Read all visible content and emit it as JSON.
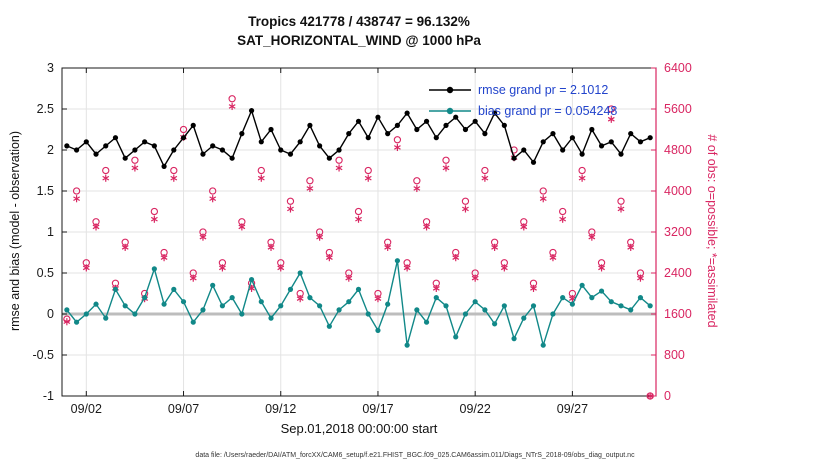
{
  "footnote": "data file: /Users/raeder/DAI/ATM_forcXX/CAM6_setup/f.e21.FHIST_BGC.f09_025.CAM6assim.011/Diags_NTrS_2018-09/obs_diag_output.nc",
  "colors": {
    "rmse": "#000000",
    "bias": "#118888",
    "obs": "#d92662",
    "legend_text": "#2244cc",
    "grid": "#e3e3e3",
    "zero_line": "#bdbdbd",
    "axis": "#1a1a1a"
  },
  "chart_data": {
    "type": "line",
    "title_line1": "Tropics 421778 / 438747 = 96.132%",
    "title_line2": "SAT_HORIZONTAL_WIND @ 1000 hPa",
    "xlabel": "Sep.01,2018 00:00:00 start",
    "ylabel_left": "rmse and bias (model - observation)",
    "ylabel_right": "# of obs: o=possible; *=assimilated",
    "legend": [
      "rmse grand pr = 2.1012",
      "bias grand pr = 0.054248"
    ],
    "rmse_grand_pr": 2.1012,
    "bias_grand_pr": 0.054248,
    "grid": true,
    "xlim": [
      0.75,
      31.3
    ],
    "ylim_left": [
      -1,
      3
    ],
    "ylim_right": [
      0,
      6400
    ],
    "y_ticks_left": [
      -1,
      -0.5,
      0,
      0.5,
      1,
      1.5,
      2,
      2.5,
      3
    ],
    "y_ticks_right": [
      0,
      800,
      1600,
      2400,
      3200,
      4000,
      4800,
      5600,
      6400
    ],
    "x_ticks": [
      {
        "day": 2,
        "label": "09/02"
      },
      {
        "day": 7,
        "label": "09/07"
      },
      {
        "day": 12,
        "label": "09/12"
      },
      {
        "day": 17,
        "label": "09/17"
      },
      {
        "day": 22,
        "label": "09/22"
      },
      {
        "day": 27,
        "label": "09/27"
      }
    ],
    "x": [
      1,
      1.5,
      2,
      2.5,
      3,
      3.5,
      4,
      4.5,
      5,
      5.5,
      6,
      6.5,
      7,
      7.5,
      8,
      8.5,
      9,
      9.5,
      10,
      10.5,
      11,
      11.5,
      12,
      12.5,
      13,
      13.5,
      14,
      14.5,
      15,
      15.5,
      16,
      16.5,
      17,
      17.5,
      18,
      18.5,
      19,
      19.5,
      20,
      20.5,
      21,
      21.5,
      22,
      22.5,
      23,
      23.5,
      24,
      24.5,
      25,
      25.5,
      26,
      26.5,
      27,
      27.5,
      28,
      28.5,
      29,
      29.5,
      30,
      30.5,
      31
    ],
    "series": [
      {
        "name": "rmse",
        "axis": "left",
        "marker": "dot",
        "values": [
          2.05,
          2.0,
          2.1,
          1.95,
          2.05,
          2.15,
          1.9,
          2.0,
          2.1,
          2.05,
          1.8,
          2.0,
          2.15,
          2.3,
          1.95,
          2.05,
          2.0,
          1.9,
          2.2,
          2.48,
          2.1,
          2.25,
          2.0,
          1.95,
          2.1,
          2.3,
          2.05,
          1.9,
          2.0,
          2.2,
          2.35,
          2.15,
          2.4,
          2.2,
          2.3,
          2.45,
          2.25,
          2.35,
          2.15,
          2.3,
          2.4,
          2.25,
          2.35,
          2.2,
          2.45,
          2.3,
          1.9,
          2.0,
          1.85,
          2.1,
          2.2,
          2.0,
          2.15,
          1.95,
          2.25,
          2.05,
          2.1,
          1.95,
          2.2,
          2.1,
          2.15
        ]
      },
      {
        "name": "bias",
        "axis": "left",
        "marker": "dot",
        "values": [
          0.05,
          -0.1,
          0.0,
          0.12,
          -0.05,
          0.3,
          0.1,
          0.0,
          0.2,
          0.55,
          0.12,
          0.3,
          0.15,
          -0.1,
          0.05,
          0.35,
          0.1,
          0.2,
          0.0,
          0.42,
          0.15,
          -0.05,
          0.1,
          0.3,
          0.5,
          0.2,
          0.1,
          -0.15,
          0.05,
          0.15,
          0.3,
          0.0,
          -0.2,
          0.12,
          0.65,
          -0.38,
          0.05,
          -0.1,
          0.2,
          0.1,
          -0.28,
          0.0,
          0.15,
          0.05,
          -0.12,
          0.1,
          -0.3,
          -0.05,
          0.1,
          -0.38,
          0.0,
          0.2,
          0.12,
          0.35,
          0.2,
          0.28,
          0.15,
          0.1,
          0.05,
          0.2,
          0.1
        ]
      },
      {
        "name": "possible",
        "axis": "right",
        "marker": "circle-open",
        "values": [
          1500,
          4000,
          2600,
          3400,
          4400,
          2200,
          3000,
          4600,
          2000,
          3600,
          2800,
          4400,
          5200,
          2400,
          3200,
          4000,
          2600,
          5800,
          3400,
          2200,
          4400,
          3000,
          2600,
          3800,
          2000,
          4200,
          3200,
          2800,
          4600,
          2400,
          3600,
          4400,
          2000,
          3000,
          5000,
          2600,
          4200,
          3400,
          2200,
          4600,
          2800,
          3800,
          2400,
          4400,
          3000,
          2600,
          4800,
          3400,
          2200,
          4000,
          2800,
          3600,
          2000,
          4400,
          3200,
          2600,
          5600,
          3800,
          3000,
          2400,
          0
        ]
      },
      {
        "name": "assimilated",
        "axis": "right",
        "marker": "asterisk",
        "values": [
          1450,
          3850,
          2500,
          3300,
          4250,
          2100,
          2900,
          4450,
          1900,
          3450,
          2700,
          4250,
          5050,
          2300,
          3100,
          3850,
          2500,
          5650,
          3300,
          2100,
          4250,
          2900,
          2500,
          3650,
          1900,
          4050,
          3100,
          2700,
          4450,
          2300,
          3450,
          4250,
          1900,
          2900,
          4850,
          2500,
          4050,
          3300,
          2100,
          4450,
          2700,
          3650,
          2300,
          4250,
          2900,
          2500,
          4650,
          3300,
          2100,
          3850,
          2700,
          3450,
          1900,
          4250,
          3100,
          2500,
          5400,
          3650,
          2900,
          2300,
          0
        ]
      }
    ]
  }
}
